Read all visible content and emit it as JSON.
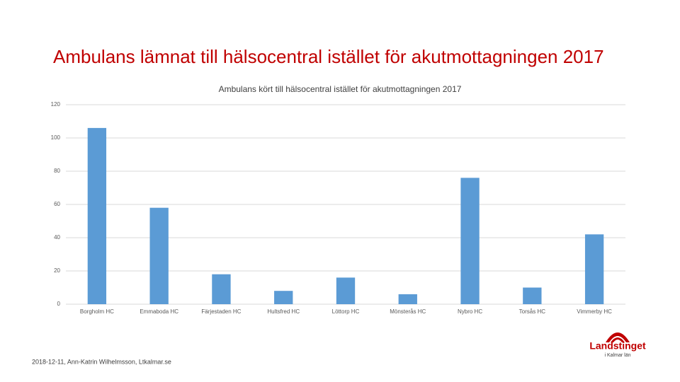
{
  "slide": {
    "title": "Ambulans lämnat till hälsocentral istället för akutmottagningen 2017",
    "footer": "2018-12-11, Ann-Katrin Wilhelmsson, Ltkalmar.se",
    "logo": {
      "name": "Landstinget",
      "subtitle": "i Kalmar län"
    }
  },
  "chart_data": {
    "type": "bar",
    "title": "Ambulans kört till hälsocentral istället för akutmottagningen 2017",
    "categories": [
      "Borgholm HC",
      "Emmaboda HC",
      "Färjestaden HC",
      "Hultsfred HC",
      "Löttorp HC",
      "Mönsterås HC",
      "Nybro HC",
      "Torsås HC",
      "Vimmerby HC"
    ],
    "values": [
      106,
      58,
      18,
      8,
      16,
      6,
      76,
      10,
      42
    ],
    "color": "#5b9bd5",
    "ylim": [
      0,
      120
    ],
    "yticks": [
      0,
      20,
      40,
      60,
      80,
      100,
      120
    ],
    "grid": true
  }
}
